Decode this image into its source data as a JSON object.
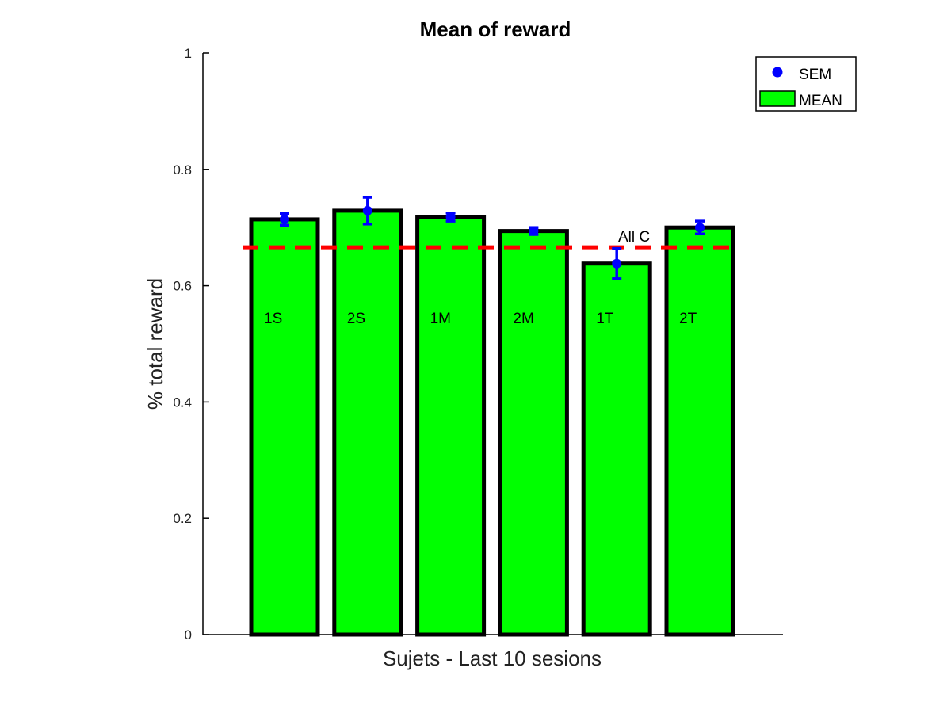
{
  "chart_data": {
    "type": "bar",
    "title": "Mean of reward",
    "xlabel": "Sujets - Last 10 sesions",
    "ylabel": "% total reward",
    "ylim": [
      0,
      1
    ],
    "yticks": [
      0,
      0.2,
      0.4,
      0.6,
      0.8,
      1
    ],
    "ytick_labels": [
      "0",
      "0.2",
      "0.4",
      "0.6",
      "0.8",
      "1"
    ],
    "grid": false,
    "legend_position": "top-right",
    "categories": [
      "1S",
      "2S",
      "1M",
      "2M",
      "1T",
      "2T"
    ],
    "series": [
      {
        "name": "MEAN",
        "values": [
          0.714,
          0.729,
          0.718,
          0.694,
          0.638,
          0.7
        ],
        "color": "#00ff00"
      },
      {
        "name": "SEM",
        "type": "errorbar",
        "center": [
          0.714,
          0.729,
          0.718,
          0.694,
          0.638,
          0.7
        ],
        "error": [
          0.01,
          0.023,
          0.007,
          0.006,
          0.026,
          0.011
        ],
        "color": "#0000ff"
      }
    ],
    "reference_line": {
      "label": "All C",
      "value": 0.666,
      "color": "#ff0000",
      "style": "dashed"
    },
    "colors": {
      "bar_fill": "#00ff00",
      "bar_edge": "#000000",
      "sem": "#0000ff",
      "reference": "#ff0000"
    }
  }
}
